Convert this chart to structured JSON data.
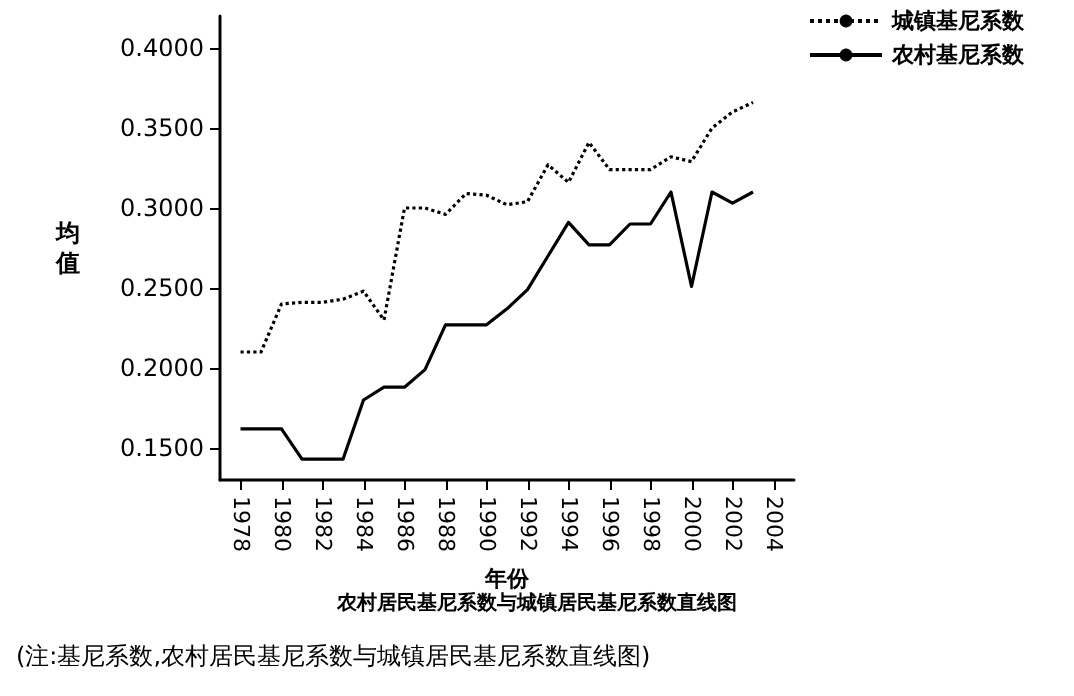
{
  "chart_data": {
    "type": "line",
    "title": "农村居民基尼系数与城镇居民基尼系数直线图",
    "xlabel": "年份",
    "ylabel": "均值",
    "annotations": [
      "(注:基尼系数,农村居民基尼系数与城镇居民基尼系数直线图)"
    ],
    "x": [
      1978,
      1979,
      1980,
      1981,
      1982,
      1983,
      1984,
      1985,
      1986,
      1987,
      1988,
      1989,
      1990,
      1991,
      1992,
      1993,
      1994,
      1995,
      1996,
      1997,
      1998,
      1999,
      2000,
      2001,
      2002,
      2003
    ],
    "series": [
      {
        "name": "城镇基尼系数",
        "color": "#000000",
        "line_style": "dotted",
        "values": [
          0.21,
          0.21,
          0.24,
          0.241,
          0.241,
          0.243,
          0.248,
          0.23,
          0.3,
          0.3,
          0.296,
          0.309,
          0.308,
          0.302,
          0.304,
          0.327,
          0.316,
          0.341,
          0.324,
          0.324,
          0.324,
          0.332,
          0.329,
          0.35,
          0.36,
          0.366
        ]
      },
      {
        "name": "农村基尼系数",
        "color": "#000000",
        "line_style": "solid",
        "values": [
          0.162,
          0.162,
          0.162,
          0.143,
          0.143,
          0.143,
          0.18,
          0.188,
          0.188,
          0.199,
          0.227,
          0.227,
          0.227,
          0.237,
          0.249,
          0.27,
          0.291,
          0.277,
          0.277,
          0.29,
          0.29,
          0.31,
          0.251,
          0.31,
          0.303,
          0.31
        ]
      }
    ],
    "xlim": [
      1977,
      2005
    ],
    "xticks": [
      1978,
      1980,
      1982,
      1984,
      1986,
      1988,
      1990,
      1992,
      1994,
      1996,
      1998,
      2000,
      2002,
      2004
    ],
    "ylim": [
      0.13,
      0.42
    ],
    "yticks": [
      {
        "value": 0.15,
        "label": "0.1500"
      },
      {
        "value": 0.2,
        "label": "0.2000"
      },
      {
        "value": 0.25,
        "label": "0.2500"
      },
      {
        "value": 0.3,
        "label": "0.3000"
      },
      {
        "value": 0.35,
        "label": "0.3500"
      },
      {
        "value": 0.4,
        "label": "0.4000"
      }
    ],
    "grid": false,
    "legend": "top right",
    "marker": "none"
  }
}
